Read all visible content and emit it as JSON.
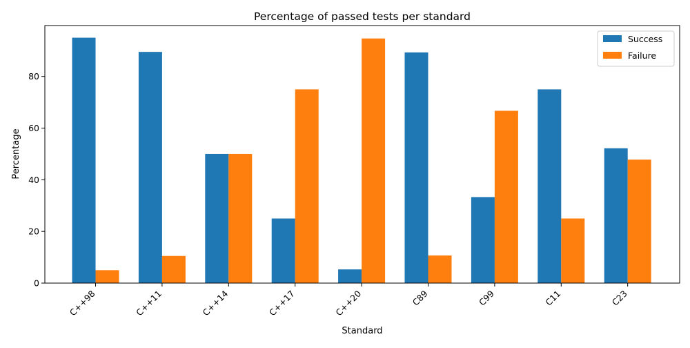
{
  "chart_data": {
    "type": "bar",
    "title": "Percentage of passed tests per standard",
    "xlabel": "Standard",
    "ylabel": "Percentage",
    "categories": [
      "C++98",
      "C++11",
      "C++14",
      "C++17",
      "C++20",
      "C89",
      "C99",
      "C11",
      "C23"
    ],
    "series": [
      {
        "name": "Success",
        "color": "#1f77b4",
        "values": [
          95.0,
          89.5,
          50.0,
          25.0,
          5.3,
          89.3,
          33.3,
          75.0,
          52.2
        ]
      },
      {
        "name": "Failure",
        "color": "#ff7f0e",
        "values": [
          5.0,
          10.5,
          50.0,
          75.0,
          94.7,
          10.7,
          66.7,
          25.0,
          47.8
        ]
      }
    ],
    "ylim": [
      0,
      99.7
    ],
    "yticks": [
      0,
      20,
      40,
      60,
      80
    ],
    "grid": false,
    "legend": "top-right"
  }
}
